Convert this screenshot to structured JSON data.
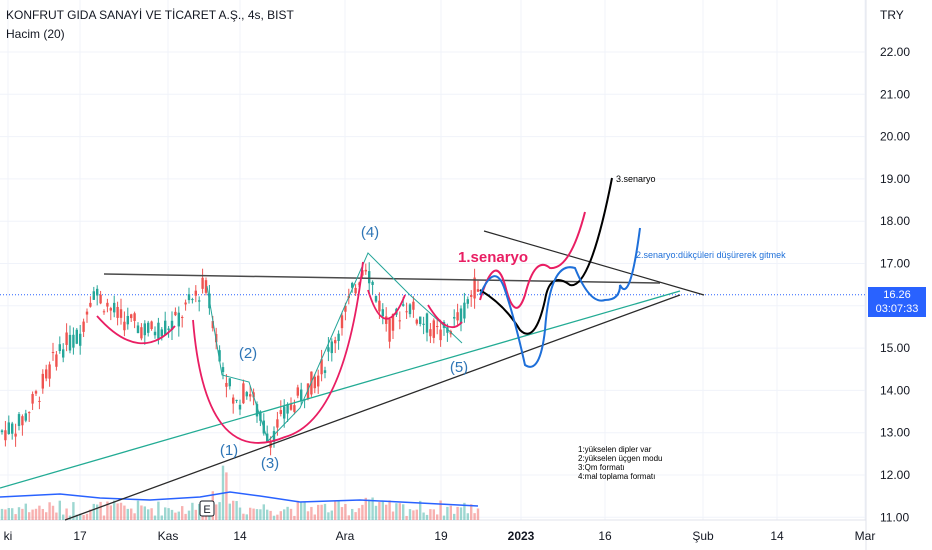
{
  "header": {
    "symbol_title": "KONFRUT GIDA SANAYİ VE TİCARET A.Ş., 4s, BIST",
    "indicator": "Hacim (20)",
    "currency": "TRY"
  },
  "price_tag": {
    "price": "16.26",
    "countdown": "03:07:33"
  },
  "chart_data": {
    "type": "candlestick",
    "y_ticks": [
      22.0,
      21.0,
      20.0,
      19.0,
      18.0,
      17.0,
      16.0,
      15.0,
      14.0,
      13.0,
      12.0,
      11.0
    ],
    "ylim": [
      10.9,
      22.9
    ],
    "x_ticks": [
      "ki",
      "17",
      "Kas",
      "14",
      "Ara",
      "19",
      "2023",
      "16",
      "Şub",
      "14",
      "Mar"
    ],
    "x_bold_ticks": [
      "2023"
    ],
    "current_price": 16.26,
    "colors": {
      "up": "#26a69a",
      "down": "#ef5350",
      "scenario1": "#e91e63",
      "scenario2": "#1e6fd9",
      "scenario3": "#000000",
      "green_line": "#22ab94",
      "price_line": "#2962ff"
    },
    "wave_labels": [
      "(1)",
      "(2)",
      "(3)",
      "(4)",
      "(5)"
    ],
    "scenario_labels": {
      "s1": "1.senaryo",
      "s2": "2.senaryo:dükçüleri düşürerek gitmek",
      "s3": "3.senaryo"
    },
    "notes": [
      "1:yükselen dipler var",
      "2:yükselen üçgen modu",
      "3:Qm formatı",
      "4:mal toplama formatı"
    ],
    "earnings_marker": "E"
  }
}
